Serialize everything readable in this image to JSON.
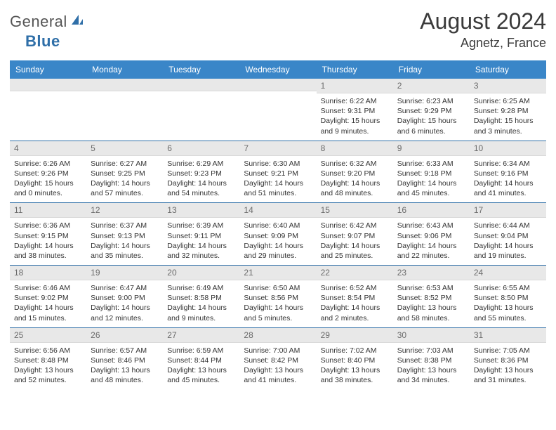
{
  "brand": {
    "part1": "General",
    "part2": "Blue"
  },
  "title": {
    "month": "August 2024",
    "location": "Agnetz, France"
  },
  "colors": {
    "header_bg": "#3a86c8",
    "header_fg": "#ffffff",
    "daynum_bg": "#e8e8e8",
    "daynum_fg": "#6b6b6b",
    "rule": "#2f6fa8",
    "brand_blue": "#2f6fa8",
    "text": "#333333"
  },
  "weekdays": [
    "Sunday",
    "Monday",
    "Tuesday",
    "Wednesday",
    "Thursday",
    "Friday",
    "Saturday"
  ],
  "weeks": [
    [
      {
        "n": "",
        "sr": "",
        "ss": "",
        "dl": ""
      },
      {
        "n": "",
        "sr": "",
        "ss": "",
        "dl": ""
      },
      {
        "n": "",
        "sr": "",
        "ss": "",
        "dl": ""
      },
      {
        "n": "",
        "sr": "",
        "ss": "",
        "dl": ""
      },
      {
        "n": "1",
        "sr": "Sunrise: 6:22 AM",
        "ss": "Sunset: 9:31 PM",
        "dl": "Daylight: 15 hours and 9 minutes."
      },
      {
        "n": "2",
        "sr": "Sunrise: 6:23 AM",
        "ss": "Sunset: 9:29 PM",
        "dl": "Daylight: 15 hours and 6 minutes."
      },
      {
        "n": "3",
        "sr": "Sunrise: 6:25 AM",
        "ss": "Sunset: 9:28 PM",
        "dl": "Daylight: 15 hours and 3 minutes."
      }
    ],
    [
      {
        "n": "4",
        "sr": "Sunrise: 6:26 AM",
        "ss": "Sunset: 9:26 PM",
        "dl": "Daylight: 15 hours and 0 minutes."
      },
      {
        "n": "5",
        "sr": "Sunrise: 6:27 AM",
        "ss": "Sunset: 9:25 PM",
        "dl": "Daylight: 14 hours and 57 minutes."
      },
      {
        "n": "6",
        "sr": "Sunrise: 6:29 AM",
        "ss": "Sunset: 9:23 PM",
        "dl": "Daylight: 14 hours and 54 minutes."
      },
      {
        "n": "7",
        "sr": "Sunrise: 6:30 AM",
        "ss": "Sunset: 9:21 PM",
        "dl": "Daylight: 14 hours and 51 minutes."
      },
      {
        "n": "8",
        "sr": "Sunrise: 6:32 AM",
        "ss": "Sunset: 9:20 PM",
        "dl": "Daylight: 14 hours and 48 minutes."
      },
      {
        "n": "9",
        "sr": "Sunrise: 6:33 AM",
        "ss": "Sunset: 9:18 PM",
        "dl": "Daylight: 14 hours and 45 minutes."
      },
      {
        "n": "10",
        "sr": "Sunrise: 6:34 AM",
        "ss": "Sunset: 9:16 PM",
        "dl": "Daylight: 14 hours and 41 minutes."
      }
    ],
    [
      {
        "n": "11",
        "sr": "Sunrise: 6:36 AM",
        "ss": "Sunset: 9:15 PM",
        "dl": "Daylight: 14 hours and 38 minutes."
      },
      {
        "n": "12",
        "sr": "Sunrise: 6:37 AM",
        "ss": "Sunset: 9:13 PM",
        "dl": "Daylight: 14 hours and 35 minutes."
      },
      {
        "n": "13",
        "sr": "Sunrise: 6:39 AM",
        "ss": "Sunset: 9:11 PM",
        "dl": "Daylight: 14 hours and 32 minutes."
      },
      {
        "n": "14",
        "sr": "Sunrise: 6:40 AM",
        "ss": "Sunset: 9:09 PM",
        "dl": "Daylight: 14 hours and 29 minutes."
      },
      {
        "n": "15",
        "sr": "Sunrise: 6:42 AM",
        "ss": "Sunset: 9:07 PM",
        "dl": "Daylight: 14 hours and 25 minutes."
      },
      {
        "n": "16",
        "sr": "Sunrise: 6:43 AM",
        "ss": "Sunset: 9:06 PM",
        "dl": "Daylight: 14 hours and 22 minutes."
      },
      {
        "n": "17",
        "sr": "Sunrise: 6:44 AM",
        "ss": "Sunset: 9:04 PM",
        "dl": "Daylight: 14 hours and 19 minutes."
      }
    ],
    [
      {
        "n": "18",
        "sr": "Sunrise: 6:46 AM",
        "ss": "Sunset: 9:02 PM",
        "dl": "Daylight: 14 hours and 15 minutes."
      },
      {
        "n": "19",
        "sr": "Sunrise: 6:47 AM",
        "ss": "Sunset: 9:00 PM",
        "dl": "Daylight: 14 hours and 12 minutes."
      },
      {
        "n": "20",
        "sr": "Sunrise: 6:49 AM",
        "ss": "Sunset: 8:58 PM",
        "dl": "Daylight: 14 hours and 9 minutes."
      },
      {
        "n": "21",
        "sr": "Sunrise: 6:50 AM",
        "ss": "Sunset: 8:56 PM",
        "dl": "Daylight: 14 hours and 5 minutes."
      },
      {
        "n": "22",
        "sr": "Sunrise: 6:52 AM",
        "ss": "Sunset: 8:54 PM",
        "dl": "Daylight: 14 hours and 2 minutes."
      },
      {
        "n": "23",
        "sr": "Sunrise: 6:53 AM",
        "ss": "Sunset: 8:52 PM",
        "dl": "Daylight: 13 hours and 58 minutes."
      },
      {
        "n": "24",
        "sr": "Sunrise: 6:55 AM",
        "ss": "Sunset: 8:50 PM",
        "dl": "Daylight: 13 hours and 55 minutes."
      }
    ],
    [
      {
        "n": "25",
        "sr": "Sunrise: 6:56 AM",
        "ss": "Sunset: 8:48 PM",
        "dl": "Daylight: 13 hours and 52 minutes."
      },
      {
        "n": "26",
        "sr": "Sunrise: 6:57 AM",
        "ss": "Sunset: 8:46 PM",
        "dl": "Daylight: 13 hours and 48 minutes."
      },
      {
        "n": "27",
        "sr": "Sunrise: 6:59 AM",
        "ss": "Sunset: 8:44 PM",
        "dl": "Daylight: 13 hours and 45 minutes."
      },
      {
        "n": "28",
        "sr": "Sunrise: 7:00 AM",
        "ss": "Sunset: 8:42 PM",
        "dl": "Daylight: 13 hours and 41 minutes."
      },
      {
        "n": "29",
        "sr": "Sunrise: 7:02 AM",
        "ss": "Sunset: 8:40 PM",
        "dl": "Daylight: 13 hours and 38 minutes."
      },
      {
        "n": "30",
        "sr": "Sunrise: 7:03 AM",
        "ss": "Sunset: 8:38 PM",
        "dl": "Daylight: 13 hours and 34 minutes."
      },
      {
        "n": "31",
        "sr": "Sunrise: 7:05 AM",
        "ss": "Sunset: 8:36 PM",
        "dl": "Daylight: 13 hours and 31 minutes."
      }
    ]
  ]
}
